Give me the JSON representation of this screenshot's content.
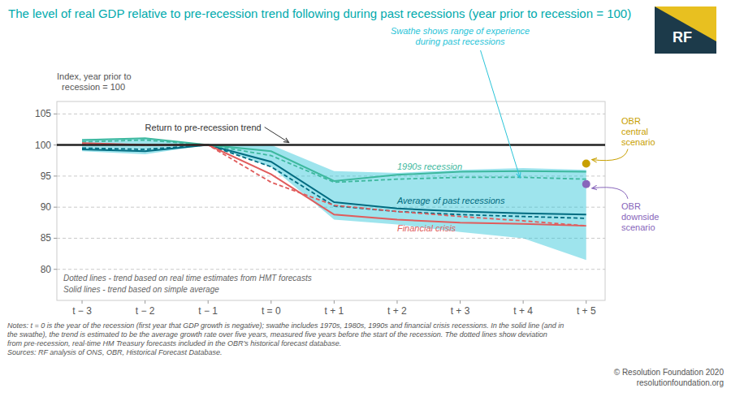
{
  "chart_data": {
    "type": "line",
    "title": "The level of real GDP relative to pre-recession trend following during past recessions (year prior to recession = 100)",
    "y_label": "Index, year prior to\n  recession = 100",
    "x": [
      -3,
      -2,
      -1,
      0,
      1,
      2,
      3,
      4,
      5
    ],
    "xlim": [
      -3.4,
      5.3
    ],
    "xticks": [
      {
        "value": -3,
        "label": "t − 3"
      },
      {
        "value": -2,
        "label": "t − 2"
      },
      {
        "value": -1,
        "label": "t − 1"
      },
      {
        "value": 0,
        "label": "t = 0"
      },
      {
        "value": 1,
        "label": "t + 1"
      },
      {
        "value": 2,
        "label": "t + 2"
      },
      {
        "value": 3,
        "label": "t + 3"
      },
      {
        "value": 4,
        "label": "t + 4"
      },
      {
        "value": 5,
        "label": "t + 5"
      }
    ],
    "ylim": [
      75,
      107
    ],
    "yticks": [
      80,
      85,
      90,
      95,
      100,
      105
    ],
    "grid": true,
    "swathe": {
      "label": "Swathe shows range of experience\nduring past recessions",
      "color": "#29c4d8",
      "lower": [
        99.0,
        98.5,
        100.0,
        96.5,
        88.0,
        87.2,
        86.0,
        85.0,
        81.5
      ],
      "upper": [
        101.0,
        101.1,
        100.0,
        100.0,
        95.8,
        95.5,
        96.0,
        96.3,
        96.0
      ]
    },
    "trend": {
      "label": "Return to pre-recession trend",
      "value": 100,
      "color": "#222222"
    },
    "series": [
      {
        "name": "Average of past recessions",
        "color": "#006b80",
        "values": [
          99.3,
          99.0,
          100.0,
          97.3,
          90.8,
          89.8,
          89.3,
          89.0,
          88.8
        ],
        "dotted_values": [
          99.5,
          99.3,
          100.0,
          96.5,
          90.2,
          89.3,
          88.8,
          88.5,
          88.2
        ]
      },
      {
        "name": "1990s recession",
        "color": "#3db89e",
        "values": [
          100.8,
          101.1,
          100.0,
          99.0,
          94.2,
          95.2,
          95.7,
          95.8,
          95.7
        ],
        "dotted_values": [
          100.5,
          100.8,
          100.0,
          98.3,
          94.0,
          94.5,
          94.8,
          94.8,
          94.5
        ]
      },
      {
        "name": "Financial crisis",
        "color": "#e05c5c",
        "values": [
          100.3,
          100.0,
          100.0,
          95.3,
          88.8,
          88.0,
          87.5,
          87.3,
          87.0
        ],
        "dotted_values": [
          100.2,
          100.0,
          100.0,
          94.0,
          90.3,
          89.3,
          88.5,
          87.8,
          87.0
        ]
      }
    ],
    "points": [
      {
        "name": "OBR\ncentral\nscenario",
        "x": 5,
        "y": 97.0,
        "color": "#c8a000"
      },
      {
        "name": "OBR\ndownside\nscenario",
        "x": 5,
        "y": 93.7,
        "color": "#8866bb"
      }
    ],
    "annotations": [
      "Dotted lines - trend based on real time estimates from HMT forecasts",
      "Solid lines - trend based on simple average"
    ],
    "notes": [
      "Notes: t = 0 is the year of the recession (first year that GDP growth is negative); swathe includes 1970s, 1980s, 1990s and financial crisis recessions. In the solid line (and in",
      "the swathe), the trend is estimated to be the average growth rate over five years, measured five years before the start of the recession. The dotted lines show deviation",
      "from pre-recession, real-time HM Treasury forecasts included in the OBR’s historical forecast database.",
      "Sources: RF analysis of ONS, OBR, Historical Forecast Database."
    ],
    "copyright": [
      "© Resolution Foundation 2020",
      "resolutionfoundation.org"
    ],
    "logo": "RF"
  }
}
